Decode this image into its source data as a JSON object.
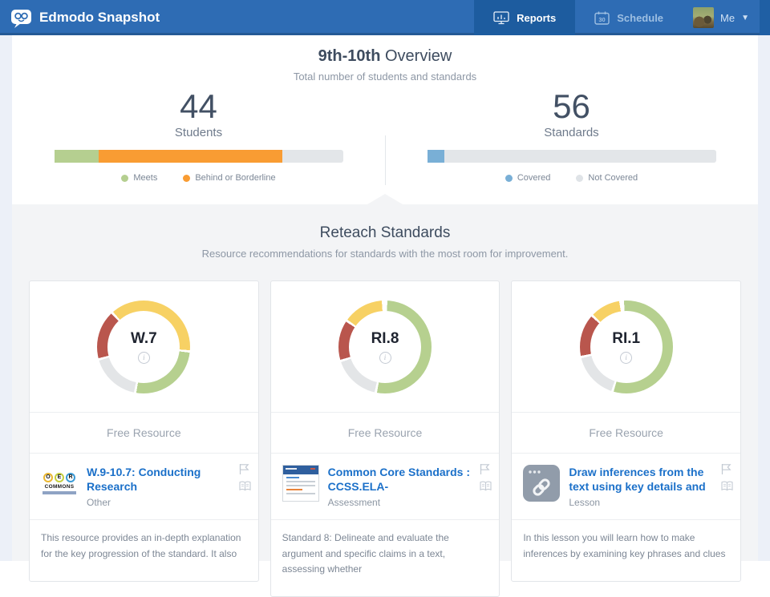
{
  "nav": {
    "brand": "Edmodo Snapshot",
    "tabs": [
      {
        "label": "Reports",
        "active": true
      },
      {
        "label": "Schedule",
        "active": false,
        "icon_text": "30"
      }
    ],
    "user": {
      "label": "Me"
    }
  },
  "overview": {
    "title_bold": "9th-10th",
    "title_rest": " Overview",
    "subtitle": "Total number of students and standards",
    "stats": [
      {
        "value": "44",
        "label": "Students",
        "bar_segments": [
          {
            "color": "#b5cf90",
            "pct": 15.5
          },
          {
            "color": "#f99c33",
            "pct": 63.5
          }
        ],
        "legend": [
          {
            "color": "#b5cf90",
            "label": "Meets"
          },
          {
            "color": "#f99c33",
            "label": "Behind or Borderline"
          }
        ]
      },
      {
        "value": "56",
        "label": "Standards",
        "bar_segments": [
          {
            "color": "#79afd6",
            "pct": 6
          }
        ],
        "legend": [
          {
            "color": "#79afd6",
            "label": "Covered"
          },
          {
            "color": "#dfe3e7",
            "label": "Not Covered"
          }
        ]
      }
    ]
  },
  "reteach": {
    "title": "Reteach Standards",
    "subtitle": "Resource recommendations for standards with the most room for improvement.",
    "free_resource_label": "Free Resource",
    "cards": [
      {
        "code": "W.7",
        "donut_segments": [
          [
            "#f7d164",
            0,
            94
          ],
          [
            "#b6d08f",
            97,
            189
          ],
          [
            "#e3e5e7",
            192,
            253
          ],
          [
            "#b9564d",
            256,
            316
          ],
          [
            "#f7d164",
            319,
            360
          ]
        ],
        "resource": {
          "title": "W.9-10.7: Conducting Research",
          "type": "Other",
          "description": "This resource provides an in-depth explanation for the key progression of the standard. It also"
        },
        "thumb_oer": {
          "letters": [
            "O",
            "E",
            "R"
          ],
          "word": "COMMONS"
        }
      },
      {
        "code": "RI.8",
        "donut_segments": [
          [
            "#b6d08f",
            3,
            190
          ],
          [
            "#e3e5e7",
            193,
            251
          ],
          [
            "#b9564d",
            254,
            303
          ],
          [
            "#f7d164",
            306,
            356
          ]
        ],
        "resource": {
          "title": "Common Core Standards : CCSS.ELA-",
          "type": "Assessment",
          "description": "Standard 8: Delineate and evaluate the argument and specific claims in a text, assessing whether"
        }
      },
      {
        "code": "RI.1",
        "donut_segments": [
          [
            "#b6d08f",
            0,
            196
          ],
          [
            "#e3e5e7",
            199,
            256
          ],
          [
            "#b9564d",
            259,
            311
          ],
          [
            "#f7d164",
            314,
            351
          ],
          [
            "#b6d08f",
            357,
            360
          ]
        ],
        "resource": {
          "title": "Draw inferences from the text using key details and",
          "type": "Lesson",
          "description": "In this lesson you will learn how to make inferences by examining key phrases and clues"
        }
      }
    ]
  }
}
